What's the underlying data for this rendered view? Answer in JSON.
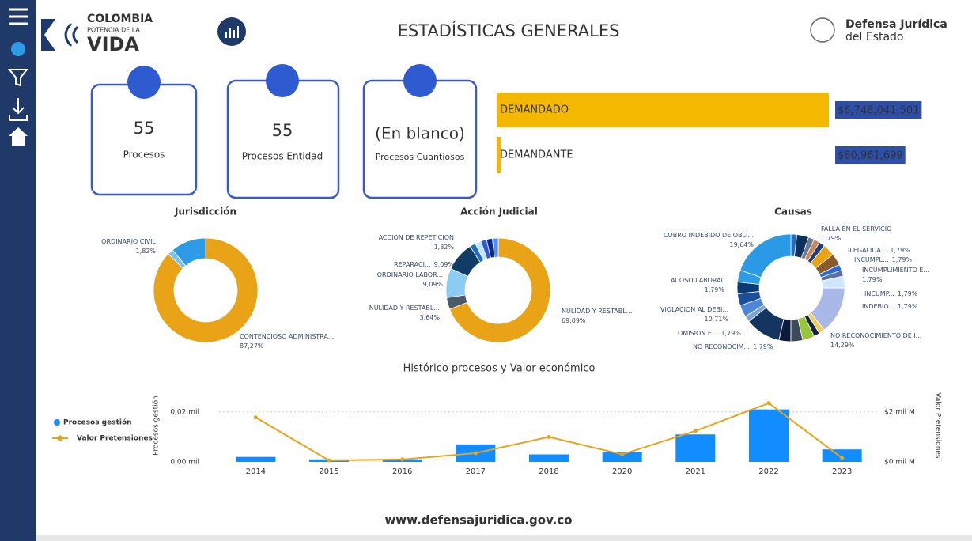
{
  "header": {
    "brand_line1": "COLOMBIA",
    "brand_line2": "POTENCIA DE LA",
    "brand_line3": "VIDA",
    "title": "ESTADÍSTICAS GENERALES",
    "agency_line1": "Defensa Jurídica",
    "agency_line2": "del Estado"
  },
  "cards": [
    {
      "value": "55",
      "label": "Procesos"
    },
    {
      "value": "55",
      "label": "Procesos Entidad"
    },
    {
      "value": "(En blanco)",
      "label": "Procesos Cuantiosos"
    }
  ],
  "amounts": {
    "type": "bar",
    "categories": [
      "DEMANDADO",
      "DEMANDANTE"
    ],
    "values": [
      6748041501,
      80961699
    ],
    "value_labels": [
      "$6,748,041,501",
      "$80,961,699"
    ],
    "color": "#f5b800",
    "xlim": [
      0,
      6748041501
    ]
  },
  "jurisdiccion": {
    "type": "donut",
    "title": "Jurisdicción",
    "categories": [
      "CONTENCIOSO ADMINISTRA...",
      "ORDINARIO CIVIL",
      null
    ],
    "values": [
      87.27,
      1.82,
      10.91
    ],
    "value_labels": [
      "87,27%",
      "1,82%",
      null
    ],
    "colors": [
      "#e8a317",
      "#7cc3f0",
      "#2e9be6"
    ]
  },
  "accion": {
    "type": "donut",
    "title": "Acción Judicial",
    "categories": [
      "NULIDAD Y RESTABL...",
      "NULIDAD Y RESTABL...",
      "ORDINARIO LABOR...",
      "REPARACI...",
      null,
      "ACCION DE REPETICION",
      null,
      null,
      null
    ],
    "values": [
      69.09,
      3.64,
      9.09,
      9.09,
      1.82,
      1.82,
      1.82,
      1.82,
      1.81
    ],
    "value_labels": [
      "69,09%",
      "3,64%",
      "9,09%",
      "9,09%",
      null,
      "1,82%",
      null,
      null,
      null
    ],
    "colors": [
      "#e8a317",
      "#4a5a6a",
      "#8ccbf2",
      "#0f3d66",
      "#1e6fc4",
      "#bfe3fa",
      "#2b59d9",
      "#0a2a8a",
      "#4d8ef0"
    ]
  },
  "causas": {
    "type": "donut",
    "title": "Causas",
    "categories": [
      "FALLA EN EL SERVICIO",
      null,
      "ILEGALIDA...",
      "INCUMPL...",
      "INCUMPLIMIENTO E...",
      null,
      null,
      "INCUMP...",
      "INDEBIO...",
      null,
      "NO RECONOCIMIENTO DE I...",
      "NO RECONOCIM...",
      "OMISION E...",
      null,
      null,
      null,
      "VIOLACION AL DEBI...",
      "ACOSO LABORAL",
      null,
      null,
      null,
      null,
      "COBRO INDEBIDO DE OBLI..."
    ],
    "values": [
      1.79,
      3.57,
      1.79,
      1.79,
      1.79,
      3.57,
      3.57,
      1.79,
      1.79,
      3.57,
      14.29,
      1.79,
      1.79,
      3.57,
      3.57,
      3.57,
      10.71,
      1.79,
      3.57,
      3.57,
      3.57,
      3.57,
      19.64
    ],
    "value_labels": [
      "1,79%",
      null,
      "1,79%",
      "1,79%",
      "1,79%",
      null,
      null,
      "1,79%",
      "1,79%",
      null,
      "14,29%",
      "1,79%",
      "1,79%",
      null,
      null,
      null,
      "10,71%",
      "1,79%",
      null,
      null,
      null,
      null,
      "19,64%"
    ],
    "colors": [
      "#1e6fc4",
      "#0f2f5c",
      "#6b7b8c",
      "#c98a5a",
      "#243b7a",
      "#e8a317",
      "#8a5a2b",
      "#2a6ad4",
      "#5a6fa0",
      "#cde6fb",
      "#a9b8e8",
      "#f0d060",
      "#15243f",
      "#9ac43a",
      "#3d4a5a",
      "#0c1b3a",
      "#13355f",
      "#7aa6d6",
      "#4c86d8",
      "#1a4f9a",
      "#0a3a78",
      "#2e9be6",
      "#2b9ae6"
    ]
  },
  "combo": {
    "type": "combo",
    "title": "Histórico procesos y Valor económico",
    "categories": [
      "2014",
      "2015",
      "2016",
      "2017",
      "2018",
      "2020",
      "2021",
      "2022",
      "2023"
    ],
    "series": [
      {
        "name": "Procesos gestión",
        "type": "bar",
        "color": "#118dff",
        "values": [
          0.002,
          0.001,
          0.001,
          0.007,
          0.003,
          0.004,
          0.011,
          0.021,
          0.005
        ]
      },
      {
        "name": "Valor Pretensiones",
        "type": "line",
        "axis": "y2",
        "color": "#e8a317",
        "values": [
          1.78,
          0.06,
          0.1,
          0.35,
          1.0,
          0.3,
          1.24,
          2.35,
          0.16
        ]
      }
    ],
    "y_label": "Procesos gestión",
    "y2_label": "Valor Pretensiones",
    "ylim": [
      0,
      0.025
    ],
    "yticks": [
      {
        "value": 0,
        "label": "0,00 mil"
      },
      {
        "value": 0.02,
        "label": "0,02 mil"
      }
    ],
    "y2lim": [
      0,
      2.5
    ],
    "y2ticks": [
      {
        "value": 0,
        "label": "$0 mil M"
      },
      {
        "value": 2,
        "label": "$2 mil M"
      }
    ],
    "grid": true
  },
  "footer": {
    "url": "www.defensajuridica.gov.co"
  }
}
